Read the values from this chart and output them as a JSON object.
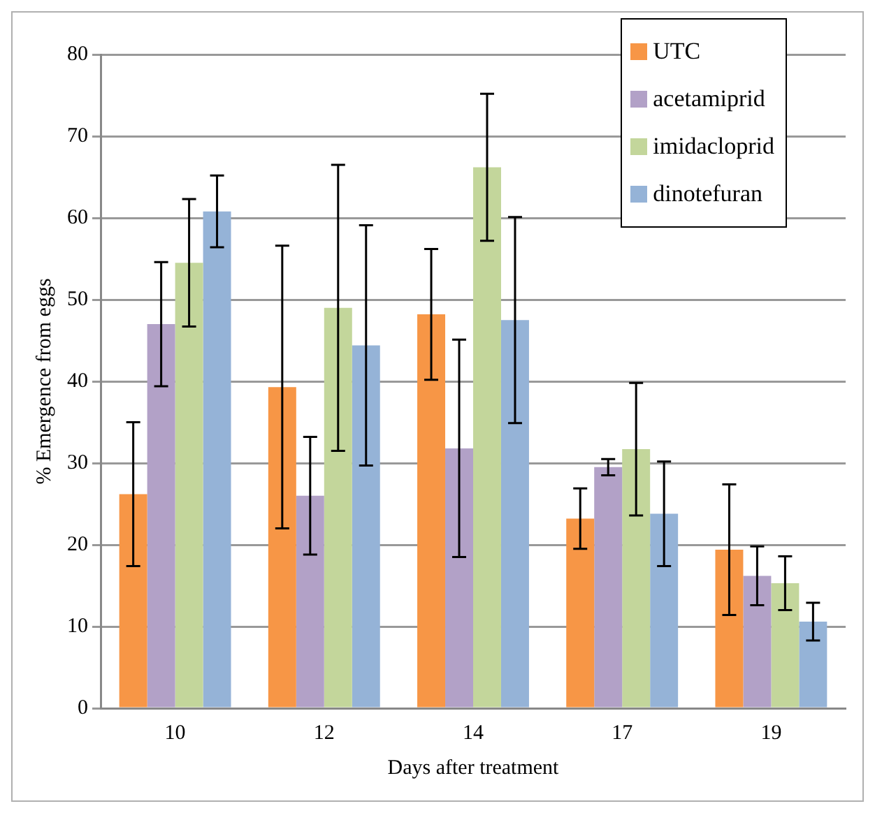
{
  "chart_data": {
    "type": "bar",
    "xlabel": "Days after treatment",
    "ylabel": "% Emergence from eggs",
    "categories": [
      "10",
      "12",
      "14",
      "17",
      "19"
    ],
    "series": [
      {
        "name": "UTC",
        "color": "#f79646",
        "values": [
          26.2,
          39.3,
          48.2,
          23.2,
          19.4
        ],
        "errors": [
          8.8,
          17.3,
          8,
          3.7,
          8
        ]
      },
      {
        "name": "acetamiprid",
        "color": "#b2a1c7",
        "values": [
          47,
          26,
          31.8,
          29.5,
          16.2
        ],
        "errors": [
          7.6,
          7.2,
          13.3,
          1,
          3.6
        ]
      },
      {
        "name": "imidacloprid",
        "color": "#c3d69b",
        "values": [
          54.5,
          49,
          66.2,
          31.7,
          15.3
        ],
        "errors": [
          7.8,
          17.5,
          9,
          8.1,
          3.3
        ]
      },
      {
        "name": "dinotefuran",
        "color": "#95b3d7",
        "values": [
          60.8,
          44.4,
          47.5,
          23.8,
          10.6
        ],
        "errors": [
          4.4,
          14.7,
          12.6,
          6.4,
          2.3
        ]
      }
    ],
    "ylim": [
      0,
      80
    ],
    "yticks": [
      0,
      10,
      20,
      30,
      40,
      50,
      60,
      70,
      80
    ],
    "grid": "y",
    "legend": "top right"
  }
}
